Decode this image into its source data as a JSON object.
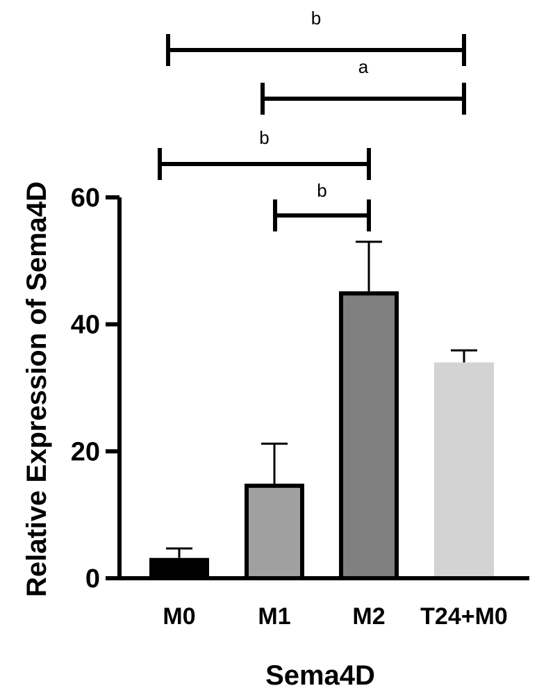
{
  "chart_data": {
    "type": "bar",
    "title": "",
    "xlabel": "Sema4D",
    "ylabel": "Relative Expression of Sema4D",
    "ylim": [
      0,
      60
    ],
    "yticks": [
      0,
      20,
      40,
      60
    ],
    "grid": false,
    "categories": [
      "M0",
      "M1",
      "M2",
      "T24+M0"
    ],
    "values": [
      3.2,
      14.9,
      45.2,
      34.0
    ],
    "errors": [
      1.5,
      6.3,
      7.8,
      1.9
    ],
    "colors": [
      "#000000",
      "#a0a0a0",
      "#808080",
      "#d3d3d3"
    ],
    "outlined": [
      true,
      true,
      true,
      false
    ],
    "significance": [
      {
        "from": 0,
        "to": 3,
        "label": "b"
      },
      {
        "from": 1,
        "to": 3,
        "label": "a"
      },
      {
        "from": 0,
        "to": 2,
        "label": "b"
      },
      {
        "from": 1,
        "to": 2,
        "label": "b"
      }
    ]
  }
}
